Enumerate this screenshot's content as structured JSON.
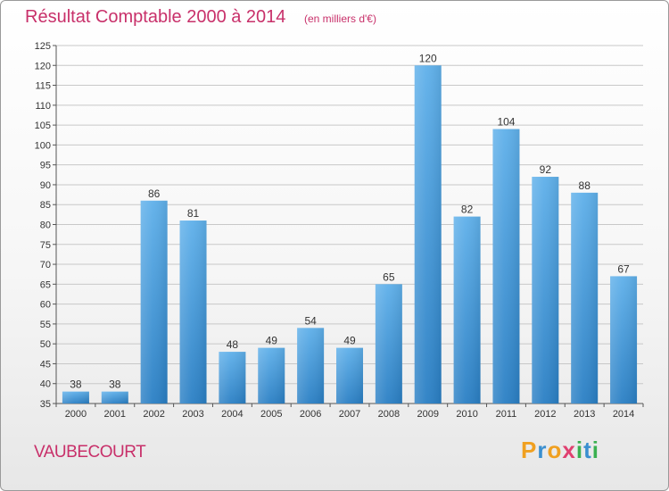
{
  "header": {
    "title": "Résultat Comptable 2000 à 2014",
    "subtitle": "(en milliers d'€)"
  },
  "footer": {
    "commune": "VAUBECOURT",
    "logo_letters": [
      "P",
      "r",
      "o",
      "x",
      "i",
      "t",
      "i"
    ],
    "logo_colors": [
      "#f0a020",
      "#3a8fd0",
      "#f0a020",
      "#e04070",
      "#3ab050",
      "#3a8fd0",
      "#3ab050"
    ]
  },
  "chart_data": {
    "type": "bar",
    "title": "Résultat Comptable 2000 à 2014",
    "xlabel": "",
    "ylabel": "",
    "ylim": [
      35,
      125
    ],
    "ytick_step": 5,
    "grid": true,
    "bar_color": "#3d96dc",
    "categories": [
      "2000",
      "2001",
      "2002",
      "2003",
      "2004",
      "2005",
      "2006",
      "2007",
      "2008",
      "2009",
      "2010",
      "2011",
      "2012",
      "2013",
      "2014"
    ],
    "values": [
      38,
      38,
      86,
      81,
      48,
      49,
      54,
      49,
      65,
      120,
      82,
      104,
      92,
      88,
      67
    ]
  }
}
